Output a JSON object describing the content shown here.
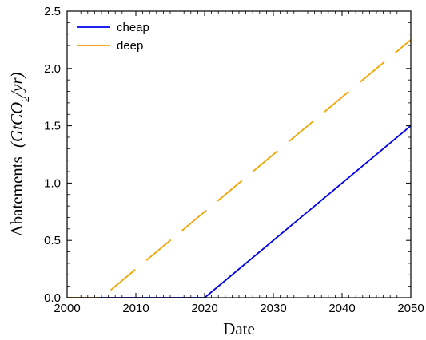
{
  "chart_data": {
    "type": "line",
    "title": "",
    "xlabel": "Date",
    "ylabel": "Abatements",
    "ylabel_unit_latex": "(GtCO2/yr)",
    "xlim": [
      2000,
      2050
    ],
    "ylim": [
      0,
      2.5
    ],
    "xticks": [
      2000,
      2010,
      2020,
      2030,
      2040,
      2050
    ],
    "xtick_labels": [
      "2000",
      "2010",
      "2020",
      "2030",
      "2040",
      "2050"
    ],
    "yticks": [
      0,
      0.5,
      1.0,
      1.5,
      2.0,
      2.5
    ],
    "ytick_labels": [
      "0.0",
      "0.5",
      "1.0",
      "1.5",
      "2.0",
      "2.5"
    ],
    "grid": false,
    "legend_position": "top-left",
    "series": [
      {
        "name": "cheap",
        "color": "#0000ee",
        "style": "solid",
        "x": [
          2000,
          2020,
          2050
        ],
        "y": [
          0,
          0,
          1.5
        ]
      },
      {
        "name": "deep",
        "color": "#f5a300",
        "style": "dashed",
        "x": [
          2000,
          2005,
          2007,
          2050
        ],
        "y": [
          0,
          0,
          0.1,
          2.25
        ]
      }
    ]
  }
}
